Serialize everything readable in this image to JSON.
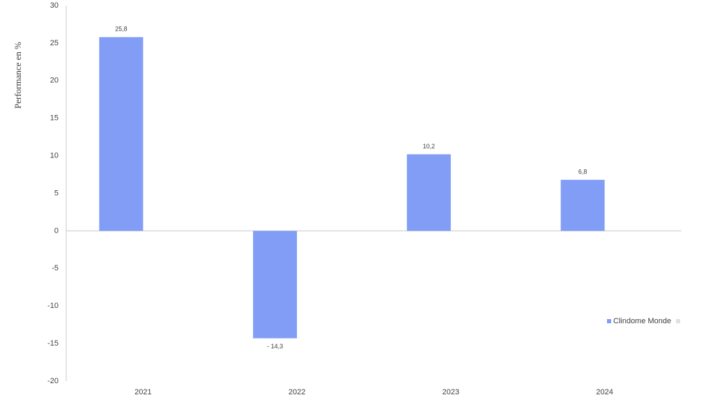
{
  "chart_data": {
    "type": "bar",
    "y_label": "Performance en %",
    "categories": [
      "2021",
      "2022",
      "2023",
      "2024"
    ],
    "series": [
      {
        "name": "Clindome Monde",
        "color": "#829df5",
        "values": [
          25.8,
          -14.3,
          10.2,
          6.8
        ],
        "value_labels": [
          "25,8",
          "- 14,3",
          "10,2",
          "6,8"
        ]
      }
    ],
    "ylim": [
      -20,
      30
    ],
    "yticks": [
      -20,
      -15,
      -10,
      -5,
      0,
      5,
      10,
      15,
      20,
      25,
      30
    ],
    "legend": "right"
  }
}
